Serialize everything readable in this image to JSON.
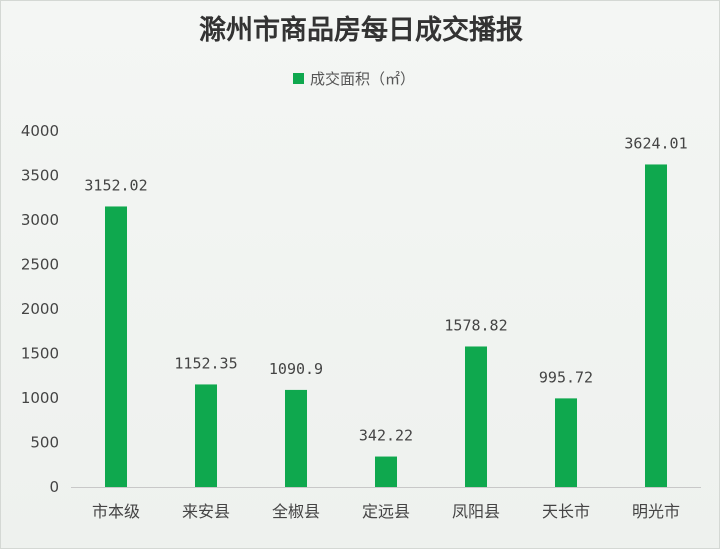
{
  "chart_data": {
    "type": "bar",
    "title": "滁州市商品房每日成交播报",
    "categories": [
      "市本级",
      "来安县",
      "全椒县",
      "定远县",
      "凤阳县",
      "天长市",
      "明光市"
    ],
    "series": [
      {
        "name": "成交面积（㎡）",
        "values": [
          3152.02,
          1152.35,
          1090.9,
          342.22,
          1578.82,
          995.72,
          3624.01
        ],
        "labels": [
          "3152.02",
          "1152.35",
          "1090.9",
          "342.22",
          "1578.82",
          "995.72",
          "3624.01"
        ],
        "color": "#0fa84e"
      }
    ],
    "yticks": [
      "0",
      "500",
      "1000",
      "1500",
      "2000",
      "2500",
      "3000",
      "3500",
      "4000"
    ],
    "ylim": [
      0,
      4000
    ],
    "grid": false,
    "legend_position": "top-center",
    "xlabel": "",
    "ylabel": ""
  }
}
